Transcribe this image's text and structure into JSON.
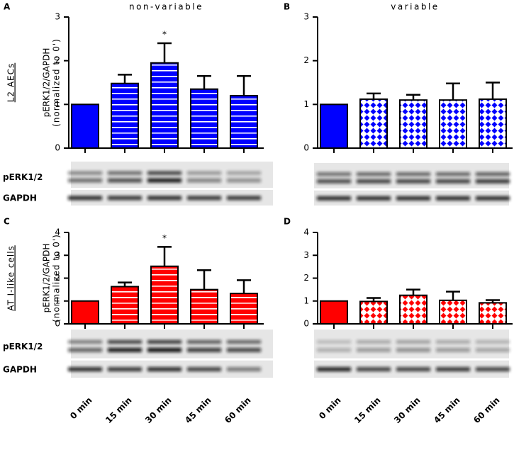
{
  "chart_data": [
    {
      "type": "bar",
      "panel_label": "A",
      "title": "non-variable",
      "row_label": "L2 AECs",
      "ylabel": "pERK1/2/GAPDH",
      "ylabel_note": "(normalized to 0')",
      "blot_labels": [
        "pERK1/2",
        "GAPDH"
      ],
      "categories": [
        null,
        null,
        null,
        null,
        null
      ],
      "values": [
        1,
        1.48,
        1.95,
        1.35,
        1.2
      ],
      "errors": [
        null,
        0.2,
        0.45,
        0.3,
        0.45
      ],
      "significance": [
        null,
        null,
        "*",
        null,
        null
      ],
      "color": "#0000ff",
      "fills": [
        "solid",
        "stripes",
        "stripes",
        "stripes",
        "stripes"
      ],
      "ylim": [
        0,
        3
      ],
      "yticks": [
        0,
        1,
        2,
        3
      ]
    },
    {
      "type": "bar",
      "panel_label": "B",
      "title": "variable",
      "categories": [
        null,
        null,
        null,
        null,
        null
      ],
      "values": [
        1,
        1.12,
        1.1,
        1.1,
        1.12
      ],
      "errors": [
        null,
        0.13,
        0.12,
        0.38,
        0.38
      ],
      "color": "#0000ff",
      "fills": [
        "solid",
        "diamonds",
        "diamonds",
        "diamonds",
        "diamonds"
      ],
      "ylim": [
        0,
        3
      ],
      "yticks": [
        0,
        1,
        2,
        3
      ]
    },
    {
      "type": "bar",
      "panel_label": "C",
      "row_label": "AT I-like cells",
      "ylabel": "pERK1/2/GAPDH",
      "ylabel_note": "(normalized to 0')",
      "blot_labels": [
        "pERK1/2",
        "GAPDH"
      ],
      "categories": [
        "0 min",
        "15 min",
        "30 min",
        "45 min",
        "60 min"
      ],
      "values": [
        1,
        1.63,
        2.52,
        1.5,
        1.33
      ],
      "errors": [
        null,
        0.18,
        0.85,
        0.85,
        0.58
      ],
      "significance": [
        null,
        null,
        "*",
        null,
        null
      ],
      "color": "#ff0000",
      "fills": [
        "solid",
        "stripes",
        "stripes",
        "stripes",
        "stripes"
      ],
      "ylim": [
        0,
        4
      ],
      "yticks": [
        0,
        1,
        2,
        3,
        4
      ]
    },
    {
      "type": "bar",
      "panel_label": "D",
      "categories": [
        "0 min",
        "15 min",
        "30 min",
        "45 min",
        "60 min"
      ],
      "values": [
        1,
        0.98,
        1.25,
        1.03,
        0.92
      ],
      "errors": [
        null,
        0.15,
        0.25,
        0.38,
        0.12
      ],
      "color": "#ff0000",
      "fills": [
        "solid",
        "diamonds",
        "diamonds",
        "diamonds",
        "diamonds"
      ],
      "ylim": [
        0,
        4
      ],
      "yticks": [
        0,
        1,
        2,
        3,
        4
      ]
    }
  ]
}
